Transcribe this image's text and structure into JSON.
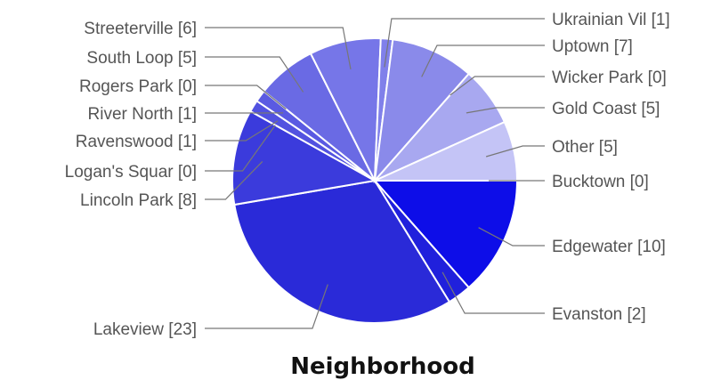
{
  "chart_data": {
    "type": "pie",
    "title": "Neighborhood",
    "slices": [
      {
        "label": "Bucktown [0]",
        "value": 0,
        "color": "#0d0de8"
      },
      {
        "label": "Edgewater [10]",
        "value": 10,
        "color": "#0d0de8"
      },
      {
        "label": "Evanston [2]",
        "value": 2,
        "color": "#2020dc"
      },
      {
        "label": "Lakeview [23]",
        "value": 23,
        "color": "#2a2ad8"
      },
      {
        "label": "Lincoln Park [8]",
        "value": 8,
        "color": "#3b3bdc"
      },
      {
        "label": "Logan's Squar [0]",
        "value": 0,
        "color": "#4a4ae0"
      },
      {
        "label": "Ravenswood [1]",
        "value": 1,
        "color": "#5252e0"
      },
      {
        "label": "River North [1]",
        "value": 1,
        "color": "#5a5ae2"
      },
      {
        "label": "Rogers Park [0]",
        "value": 0,
        "color": "#6060e4"
      },
      {
        "label": "South Loop [5]",
        "value": 5,
        "color": "#6a6ae4"
      },
      {
        "label": "Streeterville [6]",
        "value": 6,
        "color": "#7676e8"
      },
      {
        "label": "Ukrainian Vil [1]",
        "value": 1,
        "color": "#8080ea"
      },
      {
        "label": "Uptown [7]",
        "value": 7,
        "color": "#8a8aea"
      },
      {
        "label": "Wicker Park [0]",
        "value": 0,
        "color": "#9a9aee"
      },
      {
        "label": "Gold Coast [5]",
        "value": 5,
        "color": "#a8a8f0"
      },
      {
        "label": "Other [5]",
        "value": 5,
        "color": "#c4c4f6"
      }
    ]
  }
}
